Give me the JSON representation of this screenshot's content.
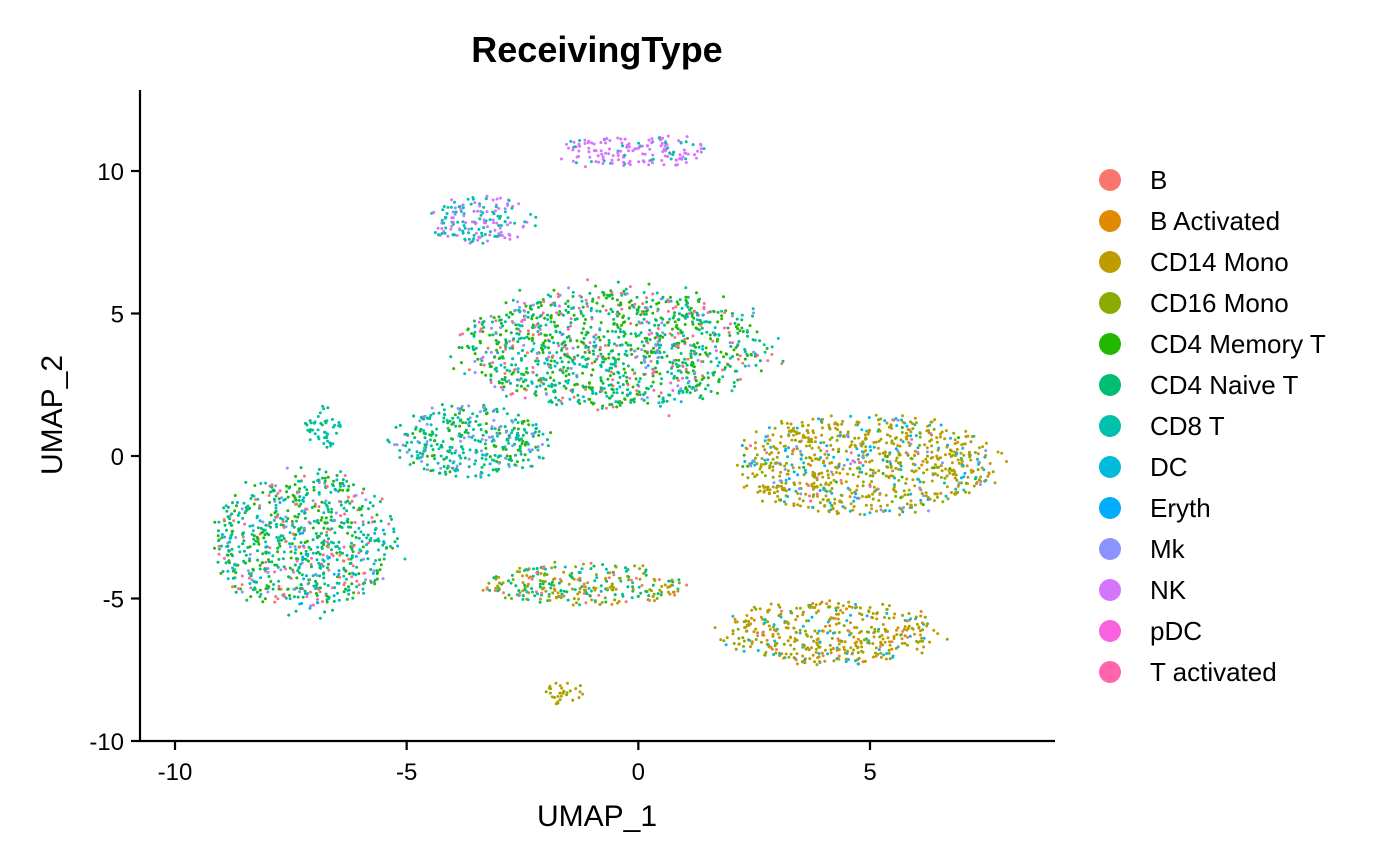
{
  "chart_data": {
    "type": "scatter",
    "title": "ReceivingType",
    "xlabel": "UMAP_1",
    "ylabel": "UMAP_2",
    "xlim": [
      -10.7,
      9.0
    ],
    "ylim": [
      -10.0,
      12.8
    ],
    "x_ticks": [
      -10,
      -5,
      0,
      5
    ],
    "x_tick_labels": [
      "-10",
      "-5",
      "0",
      "5"
    ],
    "y_ticks": [
      -10,
      -5,
      0,
      5,
      10
    ],
    "y_tick_labels": [
      "-10",
      "-5",
      "0",
      "5",
      "10"
    ],
    "grid": false,
    "legend_position": "right",
    "legend": [
      {
        "name": "B",
        "color": "#F8766D"
      },
      {
        "name": "B Activated",
        "color": "#E18A00"
      },
      {
        "name": "CD14 Mono",
        "color": "#BE9C00"
      },
      {
        "name": "CD16 Mono",
        "color": "#8CAB00"
      },
      {
        "name": "CD4 Memory T",
        "color": "#24B700"
      },
      {
        "name": "CD4 Naive T",
        "color": "#00BE70"
      },
      {
        "name": "CD8 T",
        "color": "#00C1AB"
      },
      {
        "name": "DC",
        "color": "#00BBDA"
      },
      {
        "name": "Eryth",
        "color": "#00ACFC"
      },
      {
        "name": "Mk",
        "color": "#8B93FF"
      },
      {
        "name": "NK",
        "color": "#D575FE"
      },
      {
        "name": "pDC",
        "color": "#F962DD"
      },
      {
        "name": "T activated",
        "color": "#FF65AC"
      }
    ],
    "clusters": [
      {
        "region": "left",
        "center": [
          -7.2,
          -3.0
        ],
        "spread": [
          2.1,
          2.6
        ],
        "mix": {
          "CD4 Naive T": 4,
          "CD4 Memory T": 3,
          "CD8 T": 3,
          "B": 1,
          "Mk": 1,
          "T activated": 1,
          "DC": 0.5,
          "Eryth": 0.5
        }
      },
      {
        "region": "left-top",
        "center": [
          -6.8,
          1.0
        ],
        "spread": [
          0.4,
          0.8
        ],
        "mix": {
          "CD8 T": 4,
          "CD4 Naive T": 2
        }
      },
      {
        "region": "center-top",
        "center": [
          -0.5,
          3.8
        ],
        "spread": [
          3.6,
          2.3
        ],
        "mix": {
          "CD4 Naive T": 4,
          "CD4 Memory T": 4,
          "CD8 T": 2,
          "Mk": 1,
          "T activated": 1,
          "B": 1,
          "pDC": 0.5,
          "DC": 0.5
        }
      },
      {
        "region": "nk-upper",
        "center": [
          -0.1,
          10.7
        ],
        "spread": [
          1.8,
          0.6
        ],
        "mix": {
          "NK": 6,
          "CD8 T": 1
        }
      },
      {
        "region": "nk-lower",
        "center": [
          -3.4,
          8.3
        ],
        "spread": [
          1.2,
          0.9
        ],
        "mix": {
          "CD8 T": 4,
          "NK": 3,
          "Mk": 0.5
        }
      },
      {
        "region": "right",
        "center": [
          4.9,
          -0.3
        ],
        "spread": [
          3.0,
          1.9
        ],
        "mix": {
          "CD14 Mono": 6,
          "CD16 Mono": 3,
          "DC": 1.5,
          "Eryth": 0.5,
          "Mk": 0.5,
          "T activated": 0.5,
          "CD4 Memory T": 0.5
        }
      },
      {
        "region": "bottom-right",
        "center": [
          4.1,
          -6.2
        ],
        "spread": [
          2.5,
          1.2
        ],
        "mix": {
          "CD14 Mono": 5,
          "CD16 Mono": 3,
          "DC": 2,
          "B Activated": 1,
          "B": 0.5
        }
      },
      {
        "region": "bottom-center",
        "center": [
          -1.2,
          -4.5
        ],
        "spread": [
          2.4,
          0.8
        ],
        "mix": {
          "CD4 Naive T": 2,
          "CD16 Mono": 2,
          "CD14 Mono": 2,
          "CD8 T": 1,
          "B": 1
        }
      },
      {
        "region": "bottom-small",
        "center": [
          -1.6,
          -8.3
        ],
        "spread": [
          0.45,
          0.45
        ],
        "mix": {
          "CD14 Mono": 5,
          "CD16 Mono": 2
        }
      },
      {
        "region": "bridge",
        "center": [
          -3.6,
          0.5
        ],
        "spread": [
          1.8,
          1.4
        ],
        "mix": {
          "CD8 T": 2,
          "CD4 Naive T": 2,
          "CD4 Memory T": 1,
          "Mk": 1
        }
      }
    ]
  }
}
